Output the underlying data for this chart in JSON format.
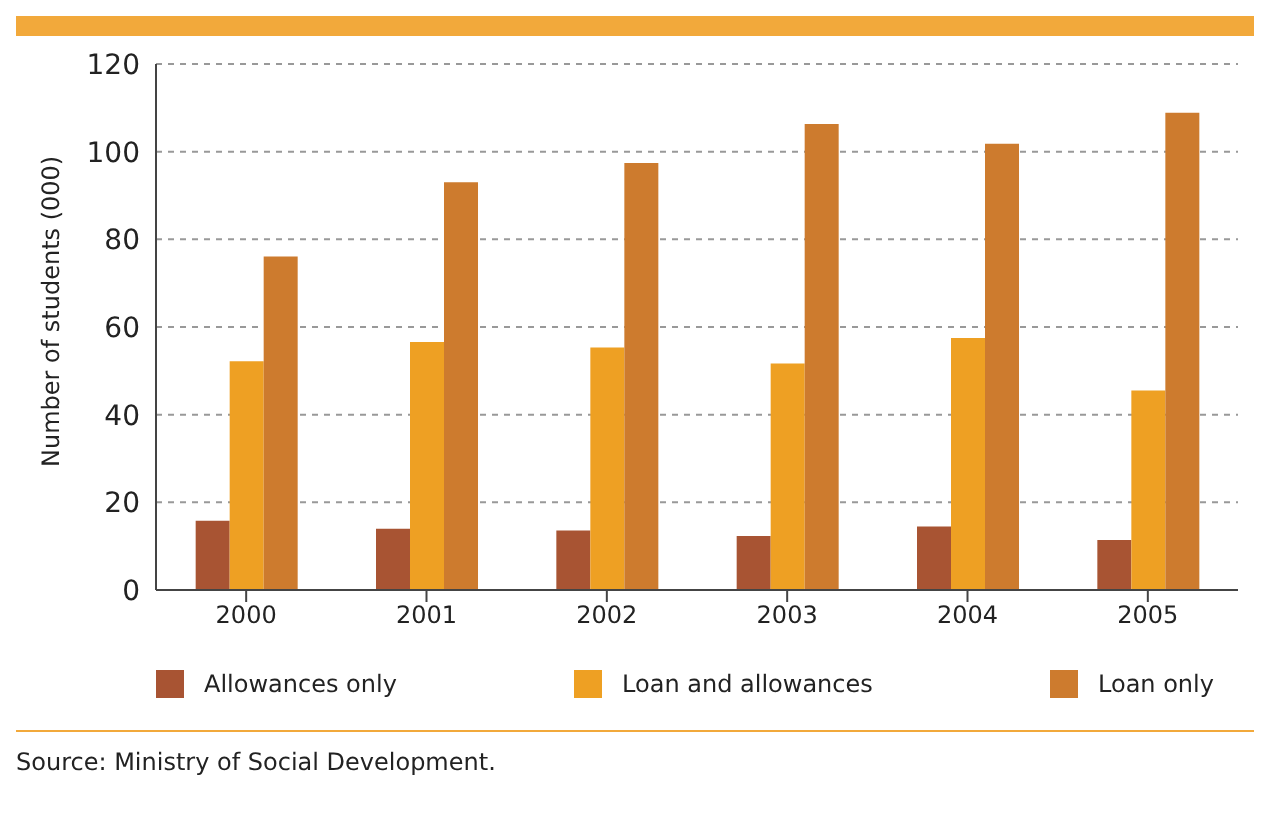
{
  "chart_data": {
    "type": "bar",
    "ylabel": "Number of students (000)",
    "categories": [
      "2000",
      "2001",
      "2002",
      "2003",
      "2004",
      "2005"
    ],
    "series": [
      {
        "name": "Allowances only",
        "color": "#a85433",
        "values": [
          15.8,
          14.0,
          13.6,
          12.3,
          14.5,
          11.4
        ]
      },
      {
        "name": "Loan and allowances",
        "color": "#eea023",
        "values": [
          52.2,
          56.6,
          55.3,
          51.7,
          57.5,
          45.5
        ]
      },
      {
        "name": "Loan only",
        "color": "#cd7b2e",
        "values": [
          76.1,
          93.0,
          97.4,
          106.3,
          101.8,
          108.9
        ]
      }
    ],
    "ylim": [
      0,
      120
    ],
    "yticks": [
      0,
      20,
      40,
      60,
      80,
      100,
      120
    ],
    "grid": "y",
    "legend": "bottom",
    "annotations": [
      "Source: Ministry of Social Development."
    ]
  }
}
